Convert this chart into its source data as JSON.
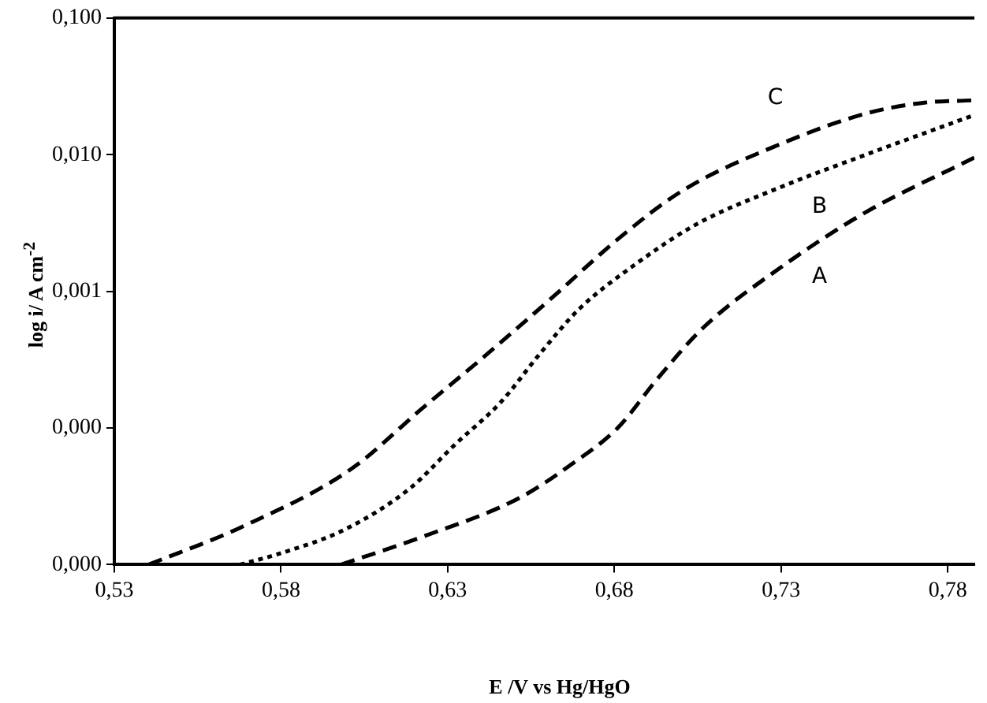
{
  "chart_data": {
    "type": "line",
    "xlabel": "E /V vs Hg/HgO",
    "ylabel": "log i/ A cm$^{-2}$",
    "log": "y",
    "grid": false,
    "legend": false,
    "marker": "none",
    "xlim": [
      0.53,
      0.788
    ],
    "xticks": [
      {
        "value": 0.53,
        "label": "0,53"
      },
      {
        "value": 0.58,
        "label": "0,58"
      },
      {
        "value": 0.63,
        "label": "0,63"
      },
      {
        "value": 0.68,
        "label": "0,68"
      },
      {
        "value": 0.73,
        "label": "0,73"
      },
      {
        "value": 0.78,
        "label": "0,78"
      }
    ],
    "ylim": [
      1e-05,
      0.1
    ],
    "yticks": [
      {
        "value": 1e-05,
        "label": "0,000"
      },
      {
        "value": 0.0001,
        "label": "0,000"
      },
      {
        "value": 0.001,
        "label": "0,001"
      },
      {
        "value": 0.01,
        "label": "0,010"
      },
      {
        "value": 0.1,
        "label": "0,100"
      }
    ],
    "series": [
      {
        "name": "A",
        "color": "#000000",
        "line_style": "dashed",
        "x": [
          0.598,
          0.6225,
          0.6518,
          0.6675,
          0.681,
          0.693,
          0.7066,
          0.73,
          0.7555,
          0.788
        ],
        "values": [
          1e-05,
          1.6e-05,
          3.1e-05,
          5.5e-05,
          0.0001,
          0.00023,
          0.00054,
          0.0015,
          0.0038,
          0.0095
        ]
      },
      {
        "name": "B",
        "color": "#000000",
        "line_style": "dotted",
        "x": [
          0.5677,
          0.5794,
          0.599,
          0.6186,
          0.6323,
          0.646,
          0.6577,
          0.6694,
          0.6851,
          0.7047,
          0.73,
          0.7555,
          0.788
        ],
        "values": [
          1e-05,
          1.2e-05,
          1.8e-05,
          3.6e-05,
          7.6e-05,
          0.000155,
          0.00035,
          0.00074,
          0.0015,
          0.0031,
          0.0058,
          0.01,
          0.0195
        ]
      },
      {
        "name": "C",
        "color": "#000000",
        "line_style": "dashed",
        "x": [
          0.5403,
          0.5677,
          0.601,
          0.6225,
          0.642,
          0.6616,
          0.681,
          0.7007,
          0.73,
          0.7555,
          0.773,
          0.788
        ],
        "values": [
          1e-05,
          1.86e-05,
          5e-05,
          0.00014,
          0.00035,
          0.00091,
          0.0024,
          0.0055,
          0.012,
          0.02,
          0.024,
          0.025
        ]
      }
    ]
  }
}
